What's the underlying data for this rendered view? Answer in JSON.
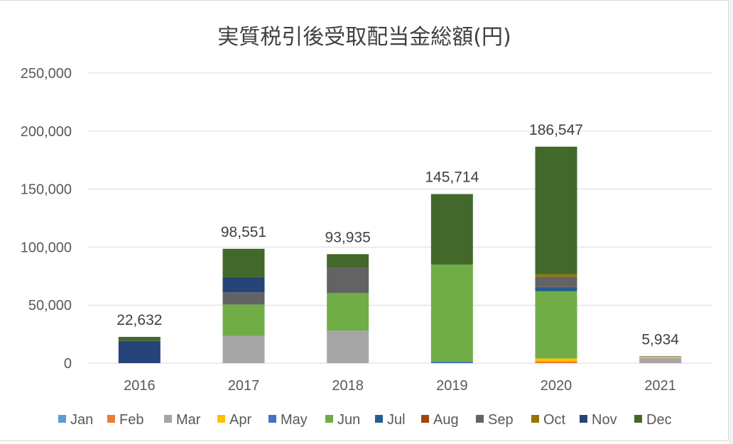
{
  "chart_data": {
    "type": "bar",
    "stacked": true,
    "title": "実質税引後受取配当金総額(円)",
    "categories": [
      "2016",
      "2017",
      "2018",
      "2019",
      "2020",
      "2021"
    ],
    "ylim": [
      0,
      250000
    ],
    "yticks": [
      0,
      50000,
      100000,
      150000,
      200000,
      250000
    ],
    "ytick_labels": [
      "0",
      "50,000",
      "100,000",
      "150,000",
      "200,000",
      "250,000"
    ],
    "totals": [
      22632,
      98551,
      93935,
      145714,
      186547,
      5934
    ],
    "total_labels": [
      "22,632",
      "98,551",
      "93,935",
      "145,714",
      "186,547",
      "5,934"
    ],
    "grid": true,
    "legend_position": "bottom",
    "series": [
      {
        "name": "Jan",
        "color": "#5B9BD5",
        "values": [
          0,
          0,
          0,
          0,
          0,
          0
        ]
      },
      {
        "name": "Feb",
        "color": "#ED7D31",
        "values": [
          0,
          0,
          0,
          0,
          1500,
          0
        ]
      },
      {
        "name": "Mar",
        "color": "#A5A5A5",
        "values": [
          0,
          23500,
          28000,
          0,
          0,
          4400
        ]
      },
      {
        "name": "Apr",
        "color": "#FFC000",
        "values": [
          0,
          0,
          0,
          0,
          2500,
          1000
        ]
      },
      {
        "name": "May",
        "color": "#4472C4",
        "values": [
          0,
          0,
          0,
          1200,
          0,
          0
        ]
      },
      {
        "name": "Jun",
        "color": "#70AD47",
        "values": [
          0,
          27000,
          32500,
          83800,
          58000,
          0
        ]
      },
      {
        "name": "Jul",
        "color": "#255E91",
        "values": [
          0,
          0,
          0,
          0,
          3500,
          0
        ]
      },
      {
        "name": "Aug",
        "color": "#9E480E",
        "values": [
          0,
          0,
          0,
          0,
          0,
          0
        ]
      },
      {
        "name": "Sep",
        "color": "#636363",
        "values": [
          0,
          10500,
          22000,
          0,
          9000,
          534
        ]
      },
      {
        "name": "Oct",
        "color": "#997300",
        "values": [
          0,
          0,
          0,
          0,
          2000,
          0
        ]
      },
      {
        "name": "Nov",
        "color": "#264478",
        "values": [
          19100,
          13000,
          0,
          0,
          0,
          0
        ]
      },
      {
        "name": "Dec",
        "color": "#43682B",
        "values": [
          3532,
          24551,
          11435,
          60714,
          110047,
          0
        ]
      }
    ]
  }
}
